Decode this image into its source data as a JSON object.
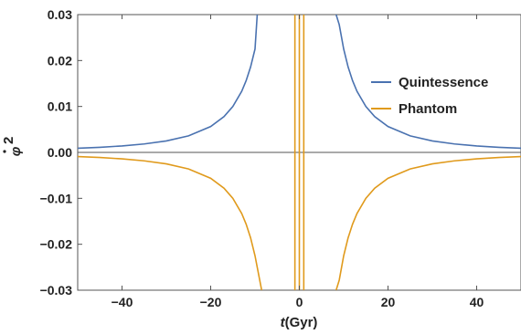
{
  "chart_data": {
    "type": "line",
    "xlabel": {
      "italic": "t",
      "rest": "(Gyr)"
    },
    "ylabel": {
      "base": "φ",
      "sup": "2"
    },
    "xlim": [
      -50,
      50
    ],
    "ylim": [
      -0.03,
      0.03
    ],
    "x_ticks": [
      -40,
      -20,
      0,
      20,
      40
    ],
    "x_tick_labels": [
      "−40",
      "−20",
      "0",
      "20",
      "40"
    ],
    "y_ticks": [
      -0.03,
      -0.02,
      -0.01,
      0.0,
      0.01,
      0.02,
      0.03
    ],
    "y_tick_labels": [
      "−0.03",
      "−0.02",
      "−0.01",
      "0.00",
      "0.01",
      "0.02",
      "0.03"
    ],
    "legend_position": "right",
    "series": [
      {
        "name": "Quintessence",
        "color": "#4a72b0",
        "branches": [
          {
            "x": [
              -50,
              -45,
              -40,
              -35,
              -30,
              -25,
              -20,
              -17,
              -15,
              -13,
              -12,
              -11,
              -10,
              -9.5
            ],
            "y": [
              0.0009,
              0.00111,
              0.00141,
              0.00184,
              0.0025,
              0.0036,
              0.00563,
              0.00779,
              0.01,
              0.01331,
              0.01563,
              0.0186,
              0.0225,
              0.03
            ]
          },
          {
            "x": [
              8.3,
              9,
              10,
              11,
              12,
              13,
              15,
              17,
              20,
              25,
              30,
              35,
              40,
              45,
              50
            ],
            "y": [
              0.03,
              0.0278,
              0.0225,
              0.0186,
              0.01563,
              0.01331,
              0.01,
              0.00779,
              0.00563,
              0.0036,
              0.0025,
              0.00184,
              0.00141,
              0.00111,
              0.0009
            ]
          }
        ]
      },
      {
        "name": "Phantom",
        "color": "#e09a1c",
        "branches": [
          {
            "x": [
              -50,
              -45,
              -40,
              -35,
              -30,
              -25,
              -20,
              -17,
              -15,
              -13,
              -12,
              -11,
              -10,
              -8.5
            ],
            "y": [
              -0.0009,
              -0.00111,
              -0.00141,
              -0.00184,
              -0.0025,
              -0.0036,
              -0.00563,
              -0.00779,
              -0.01,
              -0.01331,
              -0.01563,
              -0.0186,
              -0.0225,
              -0.03
            ]
          },
          {
            "x": [
              8.3,
              9,
              10,
              11,
              12,
              13,
              15,
              17,
              20,
              25,
              30,
              35,
              40,
              45,
              50
            ],
            "y": [
              -0.03,
              -0.0278,
              -0.0225,
              -0.0186,
              -0.01563,
              -0.01331,
              -0.01,
              -0.00779,
              -0.00563,
              -0.0036,
              -0.0025,
              -0.00184,
              -0.00141,
              -0.00111,
              -0.0009
            ]
          }
        ],
        "vertical_lines_at_x": [
          -1,
          0,
          1
        ]
      }
    ]
  }
}
